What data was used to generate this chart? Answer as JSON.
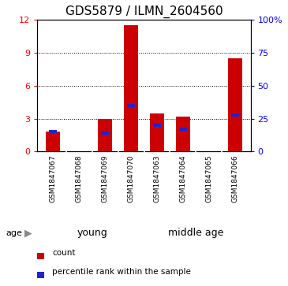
{
  "title": "GDS5879 / ILMN_2604560",
  "samples": [
    "GSM1847067",
    "GSM1847068",
    "GSM1847069",
    "GSM1847070",
    "GSM1847063",
    "GSM1847064",
    "GSM1847065",
    "GSM1847066"
  ],
  "count_values": [
    1.8,
    0.0,
    3.0,
    11.5,
    3.5,
    3.2,
    0.0,
    8.5
  ],
  "percentile_values": [
    15,
    0,
    14,
    35,
    20,
    17,
    0,
    28
  ],
  "groups": [
    {
      "label": "young",
      "start": 0,
      "end": 4
    },
    {
      "label": "middle age",
      "start": 4,
      "end": 8
    }
  ],
  "ylim_left": [
    0,
    12
  ],
  "ylim_right": [
    0,
    100
  ],
  "yticks_left": [
    0,
    3,
    6,
    9,
    12
  ],
  "yticks_right": [
    0,
    25,
    50,
    75,
    100
  ],
  "bar_color": "#CC0000",
  "percentile_color": "#2222CC",
  "bar_width": 0.55,
  "bg_color": "#ffffff",
  "plot_bg": "#ffffff",
  "group_bg": "#d3d3d3",
  "group_label_bg": "#77DD77",
  "age_label": "age",
  "legend_count": "count",
  "legend_percentile": "percentile rank within the sample",
  "title_fontsize": 11,
  "tick_fontsize": 8,
  "sample_fontsize": 6.5,
  "group_label_fontsize": 9,
  "legend_fontsize": 7.5
}
